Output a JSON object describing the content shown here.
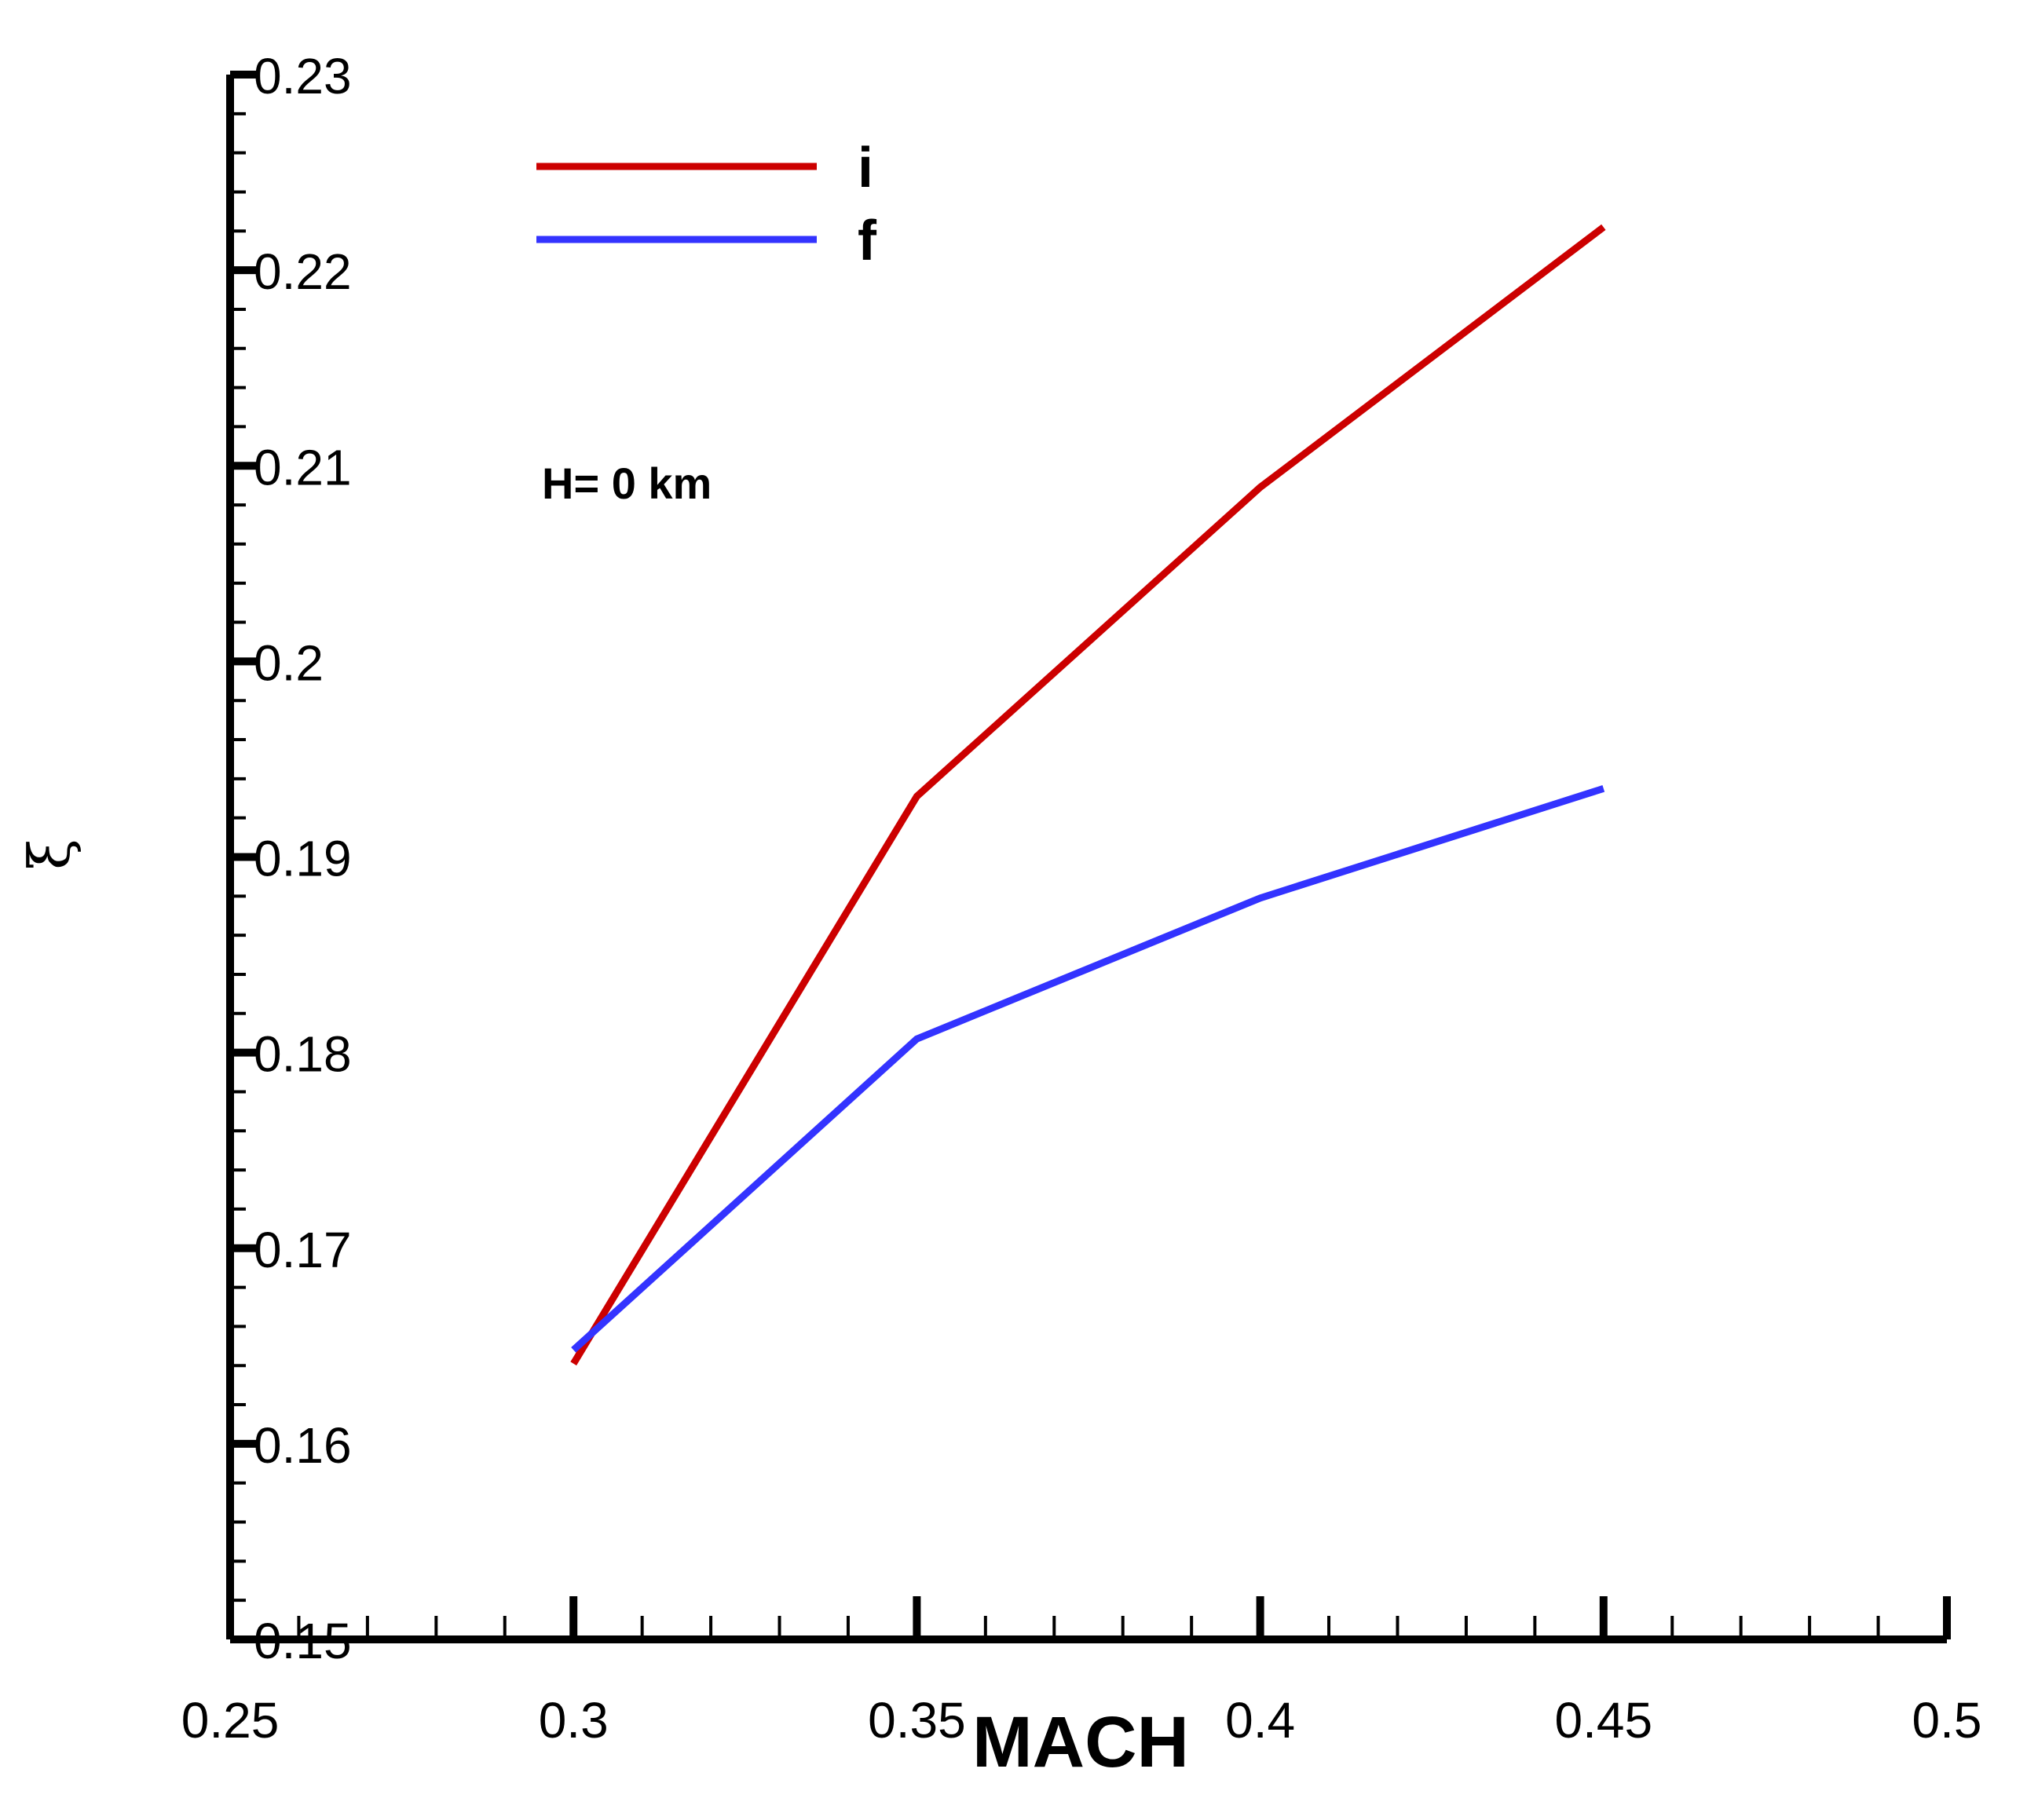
{
  "chart_data": {
    "type": "line",
    "xlabel": "MACH",
    "ylabel": "ξ",
    "xlim": [
      0.25,
      0.5
    ],
    "ylim": [
      0.15,
      0.23
    ],
    "x_ticks": [
      "0.25",
      "0.3",
      "0.35",
      "0.4",
      "0.45",
      "0.5"
    ],
    "y_ticks": [
      "0.15",
      "0.16",
      "0.17",
      "0.18",
      "0.19",
      "0.2",
      "0.21",
      "0.22",
      "0.23"
    ],
    "x_minor_per_major": 4,
    "y_minor_per_major": 4,
    "grid": false,
    "legend_position": "top-left",
    "annotation": "H= 0 km",
    "x": [
      0.3,
      0.35,
      0.4,
      0.45
    ],
    "series": [
      {
        "name": "i",
        "color": "#cc0000",
        "values": [
          0.1641,
          0.1931,
          0.2089,
          0.2222
        ]
      },
      {
        "name": "f",
        "color": "#3333ff",
        "values": [
          0.1648,
          0.1807,
          0.1879,
          0.1935
        ]
      }
    ]
  }
}
